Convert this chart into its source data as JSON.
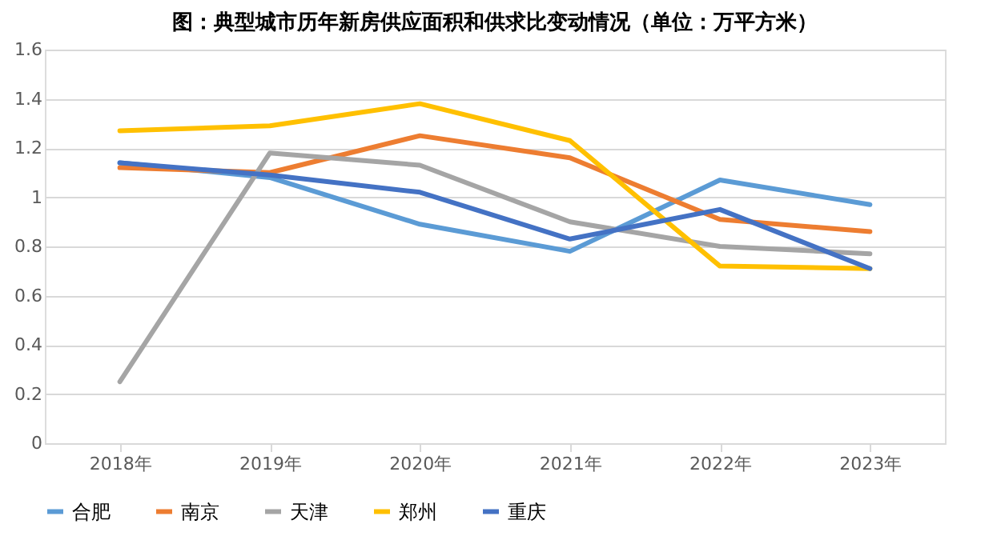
{
  "chart_data": {
    "type": "line",
    "title": "图：典型城市历年新房供应面积和供求比变动情况（单位：万平方米）",
    "categories": [
      "2018年",
      "2019年",
      "2020年",
      "2021年",
      "2022年",
      "2023年"
    ],
    "series": [
      {
        "name": "合肥",
        "color": "#5b9bd5",
        "values": [
          1.14,
          1.08,
          0.89,
          0.78,
          1.07,
          0.97
        ]
      },
      {
        "name": "南京",
        "color": "#ed7d31",
        "values": [
          1.12,
          1.1,
          1.25,
          1.16,
          0.91,
          0.86
        ]
      },
      {
        "name": "天津",
        "color": "#a5a5a5",
        "values": [
          0.25,
          1.18,
          1.13,
          0.9,
          0.8,
          0.77
        ]
      },
      {
        "name": "郑州",
        "color": "#ffc000",
        "values": [
          1.27,
          1.29,
          1.38,
          1.23,
          0.72,
          0.71
        ]
      },
      {
        "name": "重庆",
        "color": "#4472c4",
        "values": [
          1.14,
          1.09,
          1.02,
          0.83,
          0.95,
          0.71
        ]
      }
    ],
    "ylim": [
      0,
      1.6
    ],
    "yticks": [
      0,
      0.2,
      0.4,
      0.6,
      0.8,
      1,
      1.2,
      1.4,
      1.6
    ],
    "grid": "y",
    "legend": "bottom",
    "marker": "none",
    "line_style": "solid"
  }
}
